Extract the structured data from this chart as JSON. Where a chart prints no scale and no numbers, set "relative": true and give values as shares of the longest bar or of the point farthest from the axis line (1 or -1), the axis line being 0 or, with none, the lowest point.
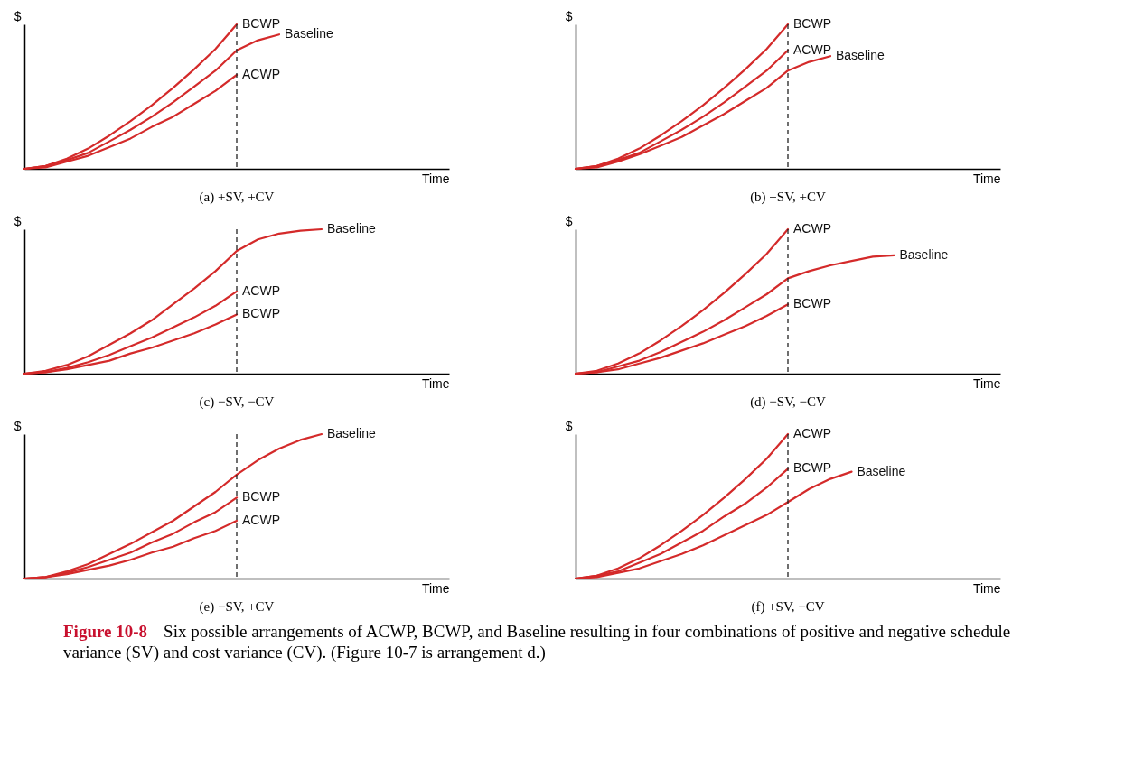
{
  "chart_data": [
    {
      "type": "line",
      "title": "(a) +SV, +CV",
      "xlabel": "Time",
      "ylabel": "$",
      "relative": true,
      "legend": false,
      "grid": false,
      "categories": [
        null,
        null,
        null,
        null,
        null,
        null,
        null,
        null,
        null,
        null,
        null,
        null,
        null,
        null,
        null,
        null,
        null,
        null,
        null,
        null,
        null
      ],
      "series": [
        {
          "name": "BCWP",
          "color": "#d42a2a",
          "values": [
            0,
            0.02,
            0.07,
            0.14,
            0.23,
            0.33,
            0.44,
            0.56,
            0.69,
            0.83,
            1,
            null,
            null,
            null,
            null,
            null,
            null,
            null,
            null,
            null,
            null
          ]
        },
        {
          "name": "Baseline",
          "color": "#d42a2a",
          "values": [
            0,
            0.02,
            0.06,
            0.11,
            0.19,
            0.27,
            0.36,
            0.46,
            0.57,
            0.68,
            0.82,
            0.89,
            0.93,
            null,
            null,
            null,
            null,
            null,
            null,
            null,
            null
          ]
        },
        {
          "name": "ACWP",
          "color": "#d42a2a",
          "values": [
            0,
            0.01,
            0.05,
            0.09,
            0.15,
            0.21,
            0.29,
            0.36,
            0.45,
            0.54,
            0.65,
            null,
            null,
            null,
            null,
            null,
            null,
            null,
            null,
            null,
            null
          ]
        }
      ],
      "annotations": [
        "Figure 10-8",
        "Six possible arrangements of ACWP, BCWP, and Baseline resulting in four combinations of positive and negative schedule variance (SV) and cost variance (CV). (Figure 10-7 is arrangement d.)"
      ]
    },
    {
      "type": "line",
      "title": "(b) +SV, +CV",
      "xlabel": "Time",
      "ylabel": "$",
      "relative": true,
      "legend": false,
      "grid": false,
      "categories": [
        null,
        null,
        null,
        null,
        null,
        null,
        null,
        null,
        null,
        null,
        null,
        null,
        null,
        null,
        null,
        null,
        null,
        null,
        null,
        null,
        null
      ],
      "series": [
        {
          "name": "BCWP",
          "color": "#d42a2a",
          "values": [
            0,
            0.02,
            0.07,
            0.14,
            0.23,
            0.33,
            0.44,
            0.56,
            0.69,
            0.83,
            1,
            null,
            null,
            null,
            null,
            null,
            null,
            null,
            null,
            null,
            null
          ]
        },
        {
          "name": "ACWP",
          "color": "#d42a2a",
          "values": [
            0,
            0.02,
            0.06,
            0.11,
            0.19,
            0.27,
            0.36,
            0.46,
            0.57,
            0.68,
            0.82,
            null,
            null,
            null,
            null,
            null,
            null,
            null,
            null,
            null,
            null
          ]
        },
        {
          "name": "Baseline",
          "color": "#d42a2a",
          "values": [
            0,
            0.01,
            0.05,
            0.1,
            0.16,
            0.22,
            0.3,
            0.38,
            0.47,
            0.56,
            0.68,
            0.74,
            0.78,
            null,
            null,
            null,
            null,
            null,
            null,
            null,
            null
          ]
        }
      ]
    },
    {
      "type": "line",
      "title": "(c) −SV, −CV",
      "xlabel": "Time",
      "ylabel": "$",
      "relative": true,
      "legend": false,
      "grid": false,
      "categories": [
        null,
        null,
        null,
        null,
        null,
        null,
        null,
        null,
        null,
        null,
        null,
        null,
        null,
        null,
        null,
        null,
        null,
        null,
        null,
        null,
        null
      ],
      "series": [
        {
          "name": "Baseline",
          "color": "#d42a2a",
          "values": [
            0,
            0.02,
            0.06,
            0.12,
            0.2,
            0.28,
            0.37,
            0.48,
            0.59,
            0.71,
            0.85,
            0.93,
            0.97,
            0.99,
            1,
            null,
            null,
            null,
            null,
            null,
            null
          ]
        },
        {
          "name": "ACWP",
          "color": "#d42a2a",
          "values": [
            0,
            0.01,
            0.04,
            0.08,
            0.13,
            0.19,
            0.25,
            0.32,
            0.39,
            0.47,
            0.57,
            null,
            null,
            null,
            null,
            null,
            null,
            null,
            null,
            null,
            null
          ]
        },
        {
          "name": "BCWP",
          "color": "#d42a2a",
          "values": [
            0,
            0.01,
            0.03,
            0.06,
            0.09,
            0.14,
            0.18,
            0.23,
            0.28,
            0.34,
            0.41,
            null,
            null,
            null,
            null,
            null,
            null,
            null,
            null,
            null,
            null
          ]
        }
      ]
    },
    {
      "type": "line",
      "title": "(d) −SV, −CV",
      "xlabel": "Time",
      "ylabel": "$",
      "relative": true,
      "legend": false,
      "grid": false,
      "categories": [
        null,
        null,
        null,
        null,
        null,
        null,
        null,
        null,
        null,
        null,
        null,
        null,
        null,
        null,
        null,
        null,
        null,
        null,
        null,
        null,
        null
      ],
      "series": [
        {
          "name": "ACWP",
          "color": "#d42a2a",
          "values": [
            0,
            0.02,
            0.07,
            0.14,
            0.23,
            0.33,
            0.44,
            0.56,
            0.69,
            0.83,
            1,
            null,
            null,
            null,
            null,
            null,
            null,
            null,
            null,
            null,
            null
          ]
        },
        {
          "name": "Baseline",
          "color": "#d42a2a",
          "values": [
            0,
            0.01,
            0.05,
            0.09,
            0.15,
            0.22,
            0.29,
            0.37,
            0.46,
            0.55,
            0.66,
            0.71,
            0.75,
            0.78,
            0.81,
            0.82,
            null,
            null,
            null,
            null,
            null
          ]
        },
        {
          "name": "BCWP",
          "color": "#d42a2a",
          "values": [
            0,
            0.01,
            0.03,
            0.07,
            0.11,
            0.16,
            0.21,
            0.27,
            0.33,
            0.4,
            0.48,
            null,
            null,
            null,
            null,
            null,
            null,
            null,
            null,
            null,
            null
          ]
        }
      ]
    },
    {
      "type": "line",
      "title": "(e) −SV, +CV",
      "xlabel": "Time",
      "ylabel": "$",
      "relative": true,
      "legend": false,
      "grid": false,
      "categories": [
        null,
        null,
        null,
        null,
        null,
        null,
        null,
        null,
        null,
        null,
        null,
        null,
        null,
        null,
        null,
        null,
        null,
        null,
        null,
        null,
        null
      ],
      "series": [
        {
          "name": "Baseline",
          "color": "#d42a2a",
          "values": [
            0,
            0.01,
            0.05,
            0.1,
            0.17,
            0.24,
            0.32,
            0.4,
            0.5,
            0.6,
            0.72,
            0.82,
            0.9,
            0.96,
            1,
            null,
            null,
            null,
            null,
            null,
            null
          ]
        },
        {
          "name": "BCWP",
          "color": "#d42a2a",
          "values": [
            0,
            0.01,
            0.04,
            0.08,
            0.13,
            0.18,
            0.25,
            0.31,
            0.39,
            0.46,
            0.56,
            null,
            null,
            null,
            null,
            null,
            null,
            null,
            null,
            null,
            null
          ]
        },
        {
          "name": "ACWP",
          "color": "#d42a2a",
          "values": [
            0,
            0.01,
            0.03,
            0.06,
            0.09,
            0.13,
            0.18,
            0.22,
            0.28,
            0.33,
            0.4,
            null,
            null,
            null,
            null,
            null,
            null,
            null,
            null,
            null,
            null
          ]
        }
      ]
    },
    {
      "type": "line",
      "title": "(f) +SV, −CV",
      "xlabel": "Time",
      "ylabel": "$",
      "relative": true,
      "legend": false,
      "grid": false,
      "categories": [
        null,
        null,
        null,
        null,
        null,
        null,
        null,
        null,
        null,
        null,
        null,
        null,
        null,
        null,
        null,
        null,
        null,
        null,
        null,
        null,
        null
      ],
      "series": [
        {
          "name": "ACWP",
          "color": "#d42a2a",
          "values": [
            0,
            0.02,
            0.07,
            0.14,
            0.23,
            0.33,
            0.44,
            0.56,
            0.69,
            0.83,
            1,
            null,
            null,
            null,
            null,
            null,
            null,
            null,
            null,
            null,
            null
          ]
        },
        {
          "name": "BCWP",
          "color": "#d42a2a",
          "values": [
            0,
            0.02,
            0.05,
            0.11,
            0.17,
            0.25,
            0.33,
            0.43,
            0.52,
            0.63,
            0.76,
            null,
            null,
            null,
            null,
            null,
            null,
            null,
            null,
            null,
            null
          ]
        },
        {
          "name": "Baseline",
          "color": "#d42a2a",
          "values": [
            0,
            0.01,
            0.04,
            0.07,
            0.12,
            0.17,
            0.23,
            0.3,
            0.37,
            0.44,
            0.53,
            0.62,
            0.69,
            0.74,
            null,
            null,
            null,
            null,
            null,
            null,
            null
          ]
        }
      ]
    }
  ]
}
